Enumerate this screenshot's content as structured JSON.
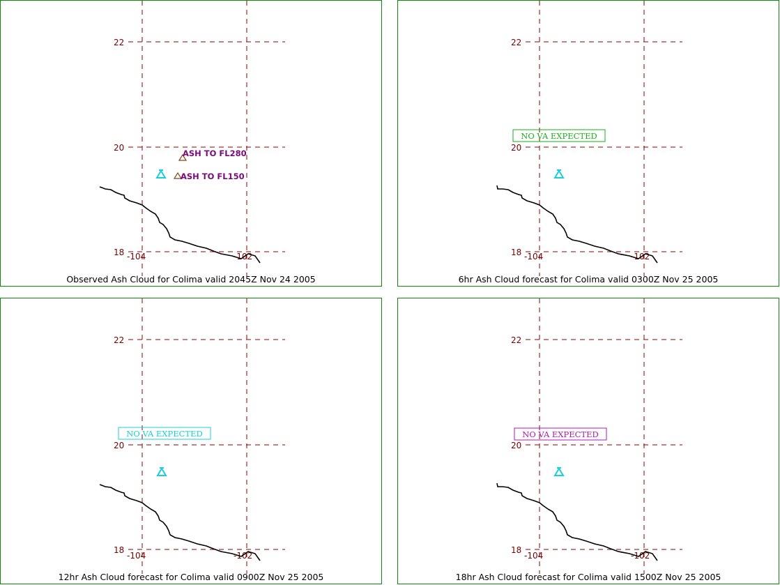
{
  "panels": [
    {
      "caption": "Observed Ash Cloud for Colima valid 2045Z Nov 24 2005",
      "lat_ticks": [
        "22",
        "20",
        "18"
      ],
      "lon_ticks": [
        "-104",
        "-102"
      ],
      "volcano_icon": "volcano-icon",
      "ash_labels": [
        "ASH TO FL280",
        "ASH TO FL150"
      ],
      "no_va_text": "",
      "no_va_color": ""
    },
    {
      "caption": "6hr Ash Cloud forecast for Colima valid 0300Z Nov 25 2005",
      "lat_ticks": [
        "22",
        "20",
        "18"
      ],
      "lon_ticks": [
        "-104",
        "-102"
      ],
      "volcano_icon": "volcano-icon",
      "ash_labels": [],
      "no_va_text": "NO VA EXPECTED",
      "no_va_color": "#16b016"
    },
    {
      "caption": "12hr Ash Cloud forecast for Colima valid 0900Z Nov 25 2005",
      "lat_ticks": [
        "22",
        "20",
        "18"
      ],
      "lon_ticks": [
        "-104",
        "-102"
      ],
      "volcano_icon": "volcano-icon",
      "ash_labels": [],
      "no_va_text": "NO VA EXPECTED",
      "no_va_color": "#18d0d8"
    },
    {
      "caption": "18hr Ash Cloud forecast for Colima valid 1500Z Nov 25 2005",
      "lat_ticks": [
        "22",
        "20",
        "18"
      ],
      "lon_ticks": [
        "-104",
        "-102"
      ],
      "volcano_icon": "volcano-icon",
      "ash_labels": [],
      "no_va_text": "NO VA EXPECTED",
      "no_va_color": "#b014b8"
    }
  ],
  "colors": {
    "border": "#0a8a0a",
    "grid": "#8b0000",
    "tick_text": "#7a0000",
    "coastline": "#000000",
    "volcano": "#18d0d8",
    "ash_marker": "#8b4513",
    "ash_label": "#7a0a7a"
  }
}
